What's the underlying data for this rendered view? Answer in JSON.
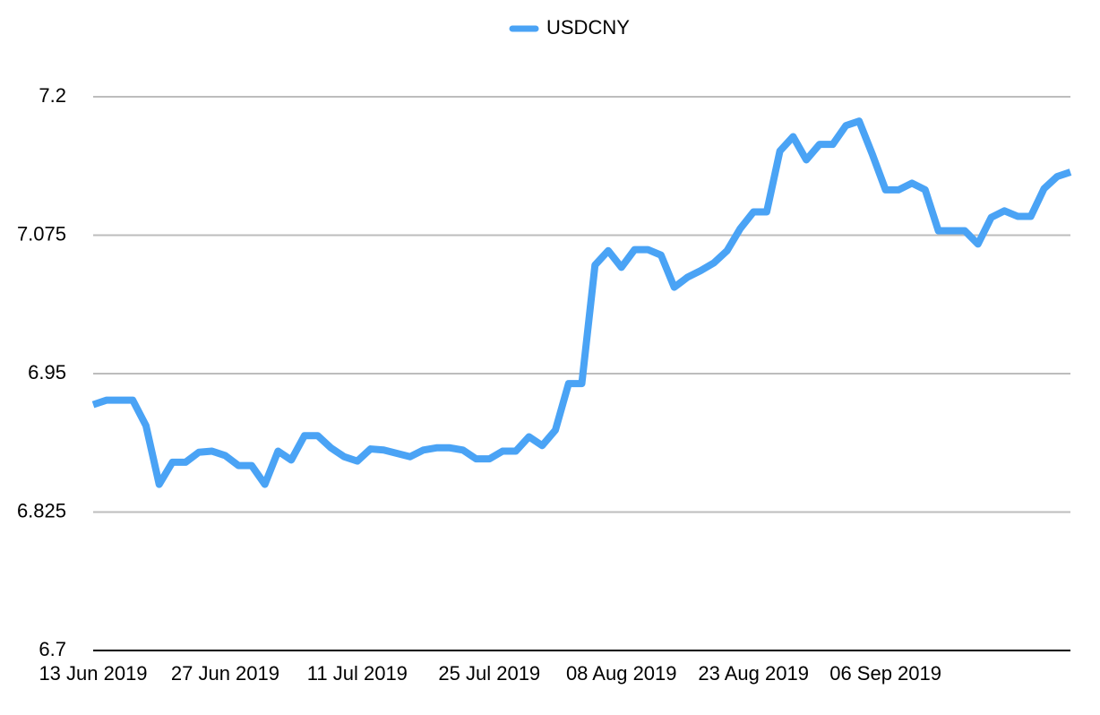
{
  "chart_data": {
    "type": "line",
    "categories": [
      "13 Jun 2019",
      null,
      null,
      null,
      null,
      null,
      null,
      null,
      null,
      null,
      "27 Jun 2019",
      null,
      null,
      null,
      null,
      null,
      null,
      null,
      null,
      null,
      "11 Jul 2019",
      null,
      null,
      null,
      null,
      null,
      null,
      null,
      null,
      null,
      "25 Jul 2019",
      null,
      null,
      null,
      null,
      null,
      null,
      null,
      null,
      null,
      "08 Aug 2019",
      null,
      null,
      null,
      null,
      null,
      null,
      null,
      null,
      null,
      "23 Aug 2019",
      null,
      null,
      null,
      null,
      null,
      null,
      null,
      null,
      null,
      "06 Sep 2019",
      null,
      null,
      null,
      null,
      null,
      null,
      null,
      null,
      null,
      null,
      null,
      null,
      null,
      null
    ],
    "series": [
      {
        "name": "USDCNY",
        "color": "#4aa3f5",
        "values": [
          6.922,
          6.926,
          6.926,
          6.926,
          6.903,
          6.85,
          6.87,
          6.87,
          6.879,
          6.88,
          6.876,
          6.867,
          6.867,
          6.85,
          6.88,
          6.872,
          6.894,
          6.894,
          6.883,
          6.875,
          6.871,
          6.882,
          6.881,
          6.878,
          6.875,
          6.881,
          6.883,
          6.883,
          6.881,
          6.873,
          6.873,
          6.88,
          6.88,
          6.893,
          6.885,
          6.899,
          6.941,
          6.941,
          7.048,
          7.061,
          7.046,
          7.062,
          7.062,
          7.057,
          7.028,
          7.037,
          7.043,
          7.05,
          7.061,
          7.081,
          7.096,
          7.096,
          7.151,
          7.164,
          7.143,
          7.157,
          7.157,
          7.174,
          7.178,
          7.148,
          7.116,
          7.116,
          7.122,
          7.116,
          7.079,
          7.079,
          7.079,
          7.067,
          7.091,
          7.097,
          7.092,
          7.092,
          7.117,
          7.128,
          7.132
        ]
      }
    ],
    "ylim": [
      6.7,
      7.2
    ],
    "yticks": [
      6.7,
      6.825,
      6.95,
      7.075,
      7.2
    ],
    "grid": true,
    "legend": "top"
  }
}
